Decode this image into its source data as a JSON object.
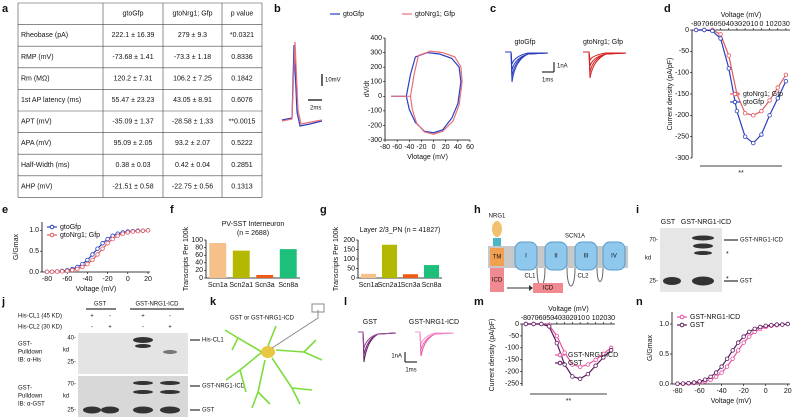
{
  "panel_labels": [
    "a",
    "b",
    "c",
    "d",
    "e",
    "f",
    "g",
    "h",
    "i",
    "j",
    "k",
    "l",
    "m",
    "n"
  ],
  "table": {
    "header": [
      "gtoGfp",
      "gtoNrg1; Gfp",
      "p value"
    ],
    "rows": [
      [
        "Rheobase (pA)",
        "222.1 ± 16.39",
        "279 ± 9.3",
        "*0.0321"
      ],
      [
        "RMP (mV)",
        "-73.68 ± 1.41",
        "-73.3 ± 1.18",
        "0.8336"
      ],
      [
        "Rm (MΩ)",
        "120.2 ± 7.31",
        "106.2 ± 7.25",
        "0.1842"
      ],
      [
        "1st AP latency (ms)",
        "55.47 ± 23.23",
        "43.05 ± 8.91",
        "0.6076"
      ],
      [
        "APT (mV)",
        "-35.09 ± 1.37",
        "-28.58 ± 1.33",
        "**0.0015"
      ],
      [
        "APA (mV)",
        "95.09 ± 2.05",
        "93.2 ± 2.07",
        "0.5222"
      ],
      [
        "Half-Width (ms)",
        "0.38 ± 0.03",
        "0.42 ± 0.04",
        "0.2851"
      ],
      [
        "AHP (mV)",
        "-21.51 ± 0.58",
        "-22.75 ± 0.56",
        "0.1313"
      ]
    ]
  },
  "traces_b": {
    "scale_y": "10mV",
    "scale_x": "2ms"
  },
  "traces_c": {
    "labels": [
      "gtoGfp",
      "gtoNrg1; Gfp"
    ],
    "scale_y": "1nA",
    "scale_x": "1ms"
  },
  "diagram_h": {
    "nrg1": "NRG1",
    "tm": "TM",
    "icd": "ICD",
    "channel": "SCN1A",
    "domains": [
      "I",
      "II",
      "III",
      "IV"
    ],
    "loops": [
      "CL1",
      "CL2"
    ],
    "icd_box": "ICD"
  },
  "blot_i": {
    "lanes": [
      "GST",
      "GST-NRG1-ICD"
    ],
    "markers": [
      "70-",
      "25-"
    ],
    "unit": "kd",
    "bands": [
      "GST-NRG1-ICD",
      "GST"
    ],
    "stars": [
      "*",
      "*"
    ]
  },
  "blot_j": {
    "lanes": [
      "GST",
      "GST-NRG1-ICD"
    ],
    "rows": [
      {
        "label": "His-CL1 (45 KD)",
        "signs": [
          "+",
          "-",
          "+",
          "-"
        ]
      },
      {
        "label": "His-CL2 (30 KD)",
        "signs": [
          "-",
          "+",
          "-",
          "+"
        ]
      }
    ],
    "top": {
      "labels": [
        "GST-",
        "Pulldown",
        "IB: α-His"
      ],
      "markers": [
        "40-",
        "25-"
      ],
      "unit": "kd",
      "band": "His-CL1"
    },
    "bottom": {
      "labels": [
        "GST-",
        "Pulldown",
        "IB: α-GST"
      ],
      "markers": [
        "70-",
        "25-"
      ],
      "unit": "kd",
      "bands": [
        "GST-NRG1-ICD",
        "GST"
      ]
    }
  },
  "diagram_k": {
    "label": "GST or GST-NRG1-ICD"
  },
  "traces_l": {
    "labels": [
      "GST",
      "GST-NRG1-ICD"
    ],
    "scale_y": "1nA",
    "scale_x": "1ms"
  },
  "chart_data": [
    {
      "type": "line",
      "x_label": "Vlotage (mV)",
      "y_label": "dV/dt",
      "legend": "top",
      "xlim": [
        -80,
        60
      ],
      "xticks": [
        -80,
        -60,
        -40,
        -20,
        0,
        20,
        40,
        60
      ],
      "ylim": [
        -300,
        400
      ],
      "yticks": [
        -300,
        -200,
        -100,
        0,
        100,
        200,
        300,
        400
      ],
      "series": [
        {
          "name": "gtoGfp",
          "color": "#2b3fbf",
          "x": [
            -70,
            -45,
            -38,
            -30,
            -10,
            10,
            30,
            42,
            45,
            40,
            30,
            15,
            0,
            -15,
            -30,
            -40,
            -45
          ],
          "values": [
            0,
            0,
            150,
            270,
            300,
            290,
            260,
            200,
            100,
            -50,
            -150,
            -230,
            -250,
            -240,
            -180,
            -90,
            0
          ]
        },
        {
          "name": "gtoNrg1; Gfp",
          "color": "#e8707a",
          "x": [
            -70,
            -38,
            -32,
            -25,
            -5,
            15,
            35,
            45,
            47,
            42,
            32,
            15,
            0,
            -15,
            -28,
            -35,
            -38
          ],
          "values": [
            0,
            0,
            150,
            280,
            310,
            300,
            270,
            200,
            100,
            -60,
            -170,
            -240,
            -260,
            -245,
            -185,
            -90,
            0
          ]
        }
      ]
    },
    {
      "type": "line",
      "x_label": "Voltage (mV)",
      "y_label": "Current density (pA/pF)",
      "x_axis_top": true,
      "markers": true,
      "legend": "center right",
      "annotation": "**",
      "xlim": [
        -85,
        35
      ],
      "xticks": [
        -80,
        -70,
        -60,
        -50,
        -40,
        -30,
        -20,
        -10,
        0,
        10,
        20,
        30
      ],
      "ylim": [
        -300,
        0
      ],
      "yticks": [
        0,
        -50,
        -100,
        -150,
        -200,
        -250,
        -300
      ],
      "x": [
        -80,
        -70,
        -60,
        -50,
        -40,
        -30,
        -20,
        -10,
        0,
        10,
        20,
        30
      ],
      "series": [
        {
          "name": "gtoNrg1; Gfp",
          "color": "#e05a60",
          "values": [
            0,
            0,
            0,
            -10,
            -60,
            -150,
            -195,
            -200,
            -190,
            -165,
            -135,
            -105
          ]
        },
        {
          "name": "gtoGfp",
          "color": "#2b3fbf",
          "values": [
            0,
            0,
            -2,
            -20,
            -90,
            -190,
            -250,
            -265,
            -245,
            -200,
            -160,
            -120
          ]
        }
      ]
    },
    {
      "type": "line",
      "x_label": "Voltage (mV)",
      "y_label": "G/Gmax",
      "markers": true,
      "legend": "upper left",
      "xlim": [
        -85,
        22
      ],
      "xticks": [
        -80,
        -60,
        -40,
        -20,
        0,
        20
      ],
      "ylim": [
        0,
        1.2
      ],
      "yticks": [
        {
          "value": 0,
          "label": "0.0"
        },
        {
          "value": 0.5,
          "label": "0.5"
        },
        {
          "value": 1,
          "label": "1.0"
        }
      ],
      "x": [
        -80,
        -75,
        -70,
        -65,
        -60,
        -55,
        -50,
        -45,
        -40,
        -35,
        -30,
        -25,
        -20,
        -15,
        -10,
        -5,
        0,
        5,
        10,
        15,
        20
      ],
      "series": [
        {
          "name": "gtoGfp",
          "color": "#2b3fbf",
          "values": [
            0.005,
            0.008,
            0.014,
            0.025,
            0.043,
            0.072,
            0.12,
            0.19,
            0.29,
            0.42,
            0.56,
            0.69,
            0.79,
            0.87,
            0.92,
            0.95,
            0.97,
            0.98,
            0.99,
            0.99,
            1.0
          ]
        },
        {
          "name": "gtoNrg1; Gfp",
          "color": "#e05a60",
          "values": [
            0.004,
            0.006,
            0.01,
            0.016,
            0.028,
            0.045,
            0.07,
            0.12,
            0.19,
            0.29,
            0.42,
            0.56,
            0.69,
            0.79,
            0.87,
            0.92,
            0.95,
            0.97,
            0.98,
            0.99,
            1.0
          ]
        }
      ]
    },
    {
      "type": "bar",
      "title": "PV-SST Interneuron",
      "subtitle": "(n = 2688)",
      "y_label": "Transcripts Per 100k",
      "categories": [
        "Scn1a",
        "Scn2a1",
        "Scn3a",
        "Scn8a"
      ],
      "values": [
        92,
        72,
        8,
        76
      ],
      "colors": [
        "#f5c08a",
        "#b5b800",
        "#f05a14",
        "#1dbf7a"
      ],
      "ylim": [
        0,
        100
      ],
      "yticks": [
        0,
        20,
        40,
        60,
        80,
        100
      ]
    },
    {
      "type": "bar",
      "title": "Layer 2/3_PN (n = 41827)",
      "y_label": "Transcripts Per 100k",
      "categories": [
        "Scn1a",
        "Scn2a1",
        "Scn3a",
        "Scn8a"
      ],
      "values": [
        22,
        175,
        20,
        68
      ],
      "colors": [
        "#f5c08a",
        "#b5b800",
        "#f05a14",
        "#1dbf7a"
      ],
      "ylim": [
        0,
        200
      ],
      "yticks": [
        0,
        50,
        100,
        150,
        200
      ]
    },
    {
      "type": "line",
      "x_label": "Voltage (mV)",
      "y_label": "Current density (pA/pF)",
      "x_axis_top": true,
      "markers": true,
      "legend": "center right",
      "annotation": "**",
      "xlim": [
        -85,
        35
      ],
      "xticks": [
        -80,
        -70,
        -60,
        -50,
        -40,
        -30,
        -20,
        -10,
        0,
        10,
        20,
        30
      ],
      "ylim": [
        -260,
        0
      ],
      "yticks": [
        0,
        -50,
        -100,
        -150,
        -200,
        -250
      ],
      "x": [
        -80,
        -70,
        -60,
        -50,
        -40,
        -30,
        -20,
        -10,
        0,
        10,
        20,
        30
      ],
      "series": [
        {
          "name": "GST-NRG1-ICD",
          "color": "#e84fa0",
          "values": [
            0,
            0,
            0,
            -5,
            -50,
            -120,
            -170,
            -180,
            -170,
            -150,
            -125,
            -100
          ]
        },
        {
          "name": "GST",
          "color": "#5b1b5e",
          "values": [
            0,
            0,
            0,
            -10,
            -80,
            -170,
            -220,
            -230,
            -210,
            -175,
            -140,
            -110
          ]
        }
      ]
    },
    {
      "type": "line",
      "x_label": "Voltage (mV)",
      "y_label": "G/Gmax",
      "markers": true,
      "legend": "upper left",
      "xlim": [
        -85,
        22
      ],
      "xticks": [
        -80,
        -60,
        -40,
        -20,
        0,
        20
      ],
      "ylim": [
        0,
        1.2
      ],
      "yticks": [
        {
          "value": 0,
          "label": "0.0"
        },
        {
          "value": 0.5,
          "label": "0.5"
        },
        {
          "value": 1,
          "label": "1.0"
        }
      ],
      "x": [
        -80,
        -75,
        -70,
        -65,
        -60,
        -55,
        -50,
        -45,
        -40,
        -35,
        -30,
        -25,
        -20,
        -15,
        -10,
        -5,
        0,
        5,
        10,
        15,
        20
      ],
      "series": [
        {
          "name": "GST-NRG1-ICD",
          "color": "#e84fa0",
          "values": [
            0.004,
            0.006,
            0.01,
            0.016,
            0.028,
            0.045,
            0.07,
            0.12,
            0.19,
            0.29,
            0.42,
            0.56,
            0.69,
            0.79,
            0.87,
            0.92,
            0.95,
            0.97,
            0.98,
            0.99,
            1.0
          ]
        },
        {
          "name": "GST",
          "color": "#5b1b5e",
          "values": [
            0.005,
            0.008,
            0.014,
            0.025,
            0.043,
            0.072,
            0.12,
            0.19,
            0.29,
            0.42,
            0.56,
            0.69,
            0.79,
            0.87,
            0.92,
            0.95,
            0.97,
            0.98,
            0.99,
            0.99,
            1.0
          ]
        }
      ]
    }
  ]
}
